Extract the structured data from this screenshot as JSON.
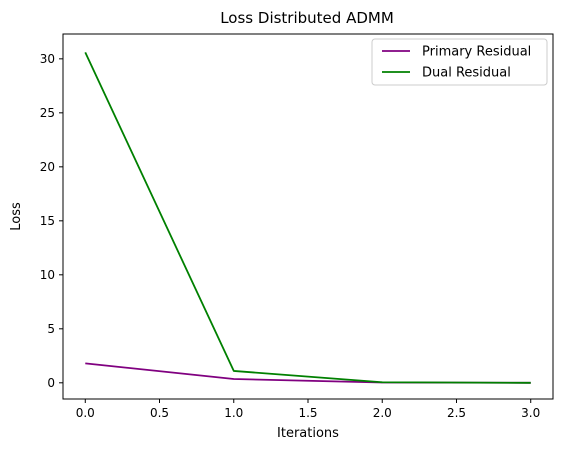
{
  "chart_data": {
    "type": "line",
    "title": "Loss Distributed ADMM",
    "xlabel": "Iterations",
    "ylabel": "Loss",
    "x": [
      0,
      1,
      2,
      3
    ],
    "xlim": [
      -0.15,
      3.15
    ],
    "ylim": [
      -1.5,
      32.3
    ],
    "xticks": [
      0.0,
      0.5,
      1.0,
      1.5,
      2.0,
      2.5,
      3.0
    ],
    "xtick_labels": [
      "0.0",
      "0.5",
      "1.0",
      "1.5",
      "2.0",
      "2.5",
      "3.0"
    ],
    "yticks": [
      0,
      5,
      10,
      15,
      20,
      25,
      30
    ],
    "ytick_labels": [
      "0",
      "5",
      "10",
      "15",
      "20",
      "25",
      "30"
    ],
    "grid": false,
    "legend_position": "top-right",
    "series": [
      {
        "name": "Primary Residual",
        "color": "#800080",
        "values": [
          1.8,
          0.35,
          0.03,
          0.0
        ]
      },
      {
        "name": "Dual Residual",
        "color": "#008000",
        "values": [
          30.6,
          1.1,
          0.05,
          0.0
        ]
      }
    ]
  }
}
